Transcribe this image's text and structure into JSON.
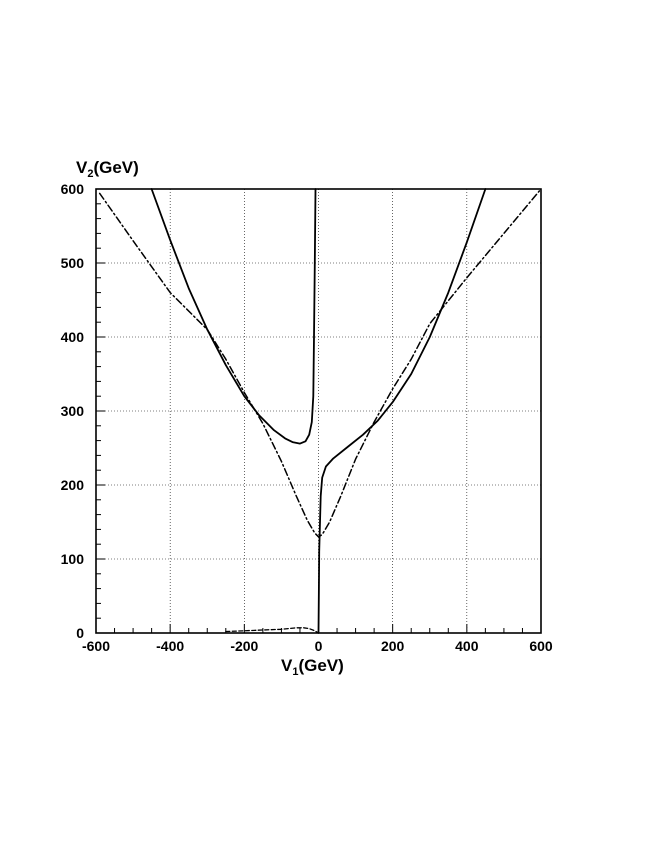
{
  "chart_data": {
    "type": "line",
    "xlabel": {
      "main": "V",
      "sub": "1",
      "unit": "(GeV)"
    },
    "ylabel": {
      "main": "V",
      "sub": "2",
      "unit": "(GeV)"
    },
    "xlim": [
      -600,
      600
    ],
    "ylim": [
      0,
      600
    ],
    "grid": true,
    "x_major_ticks": [
      -600,
      -400,
      -200,
      0,
      200,
      400,
      600
    ],
    "y_major_ticks": [
      0,
      100,
      200,
      300,
      400,
      500,
      600
    ],
    "x_tick_labels": [
      "-600",
      "-400",
      "-200",
      "0",
      "200",
      "400",
      "600"
    ],
    "y_tick_labels": [
      "0",
      "100",
      "200",
      "300",
      "400",
      "500",
      "600"
    ],
    "series": [
      {
        "style": "solid",
        "points": [
          [
            -450,
            600
          ],
          [
            -400,
            531
          ],
          [
            -350,
            466
          ],
          [
            -300,
            410
          ],
          [
            -250,
            362
          ],
          [
            -200,
            320
          ],
          [
            -160,
            294
          ],
          [
            -120,
            274
          ],
          [
            -90,
            263
          ],
          [
            -70,
            258
          ],
          [
            -50,
            256
          ],
          [
            -35,
            259
          ],
          [
            -25,
            268
          ],
          [
            -18,
            285
          ],
          [
            -14,
            320
          ],
          [
            -12,
            400
          ],
          [
            -10,
            500
          ],
          [
            -8,
            600
          ]
        ]
      },
      {
        "style": "solid",
        "points": [
          [
            0,
            0
          ],
          [
            1,
            60
          ],
          [
            2,
            110
          ],
          [
            4,
            150
          ],
          [
            6,
            185
          ],
          [
            10,
            210
          ],
          [
            20,
            225
          ],
          [
            40,
            236
          ],
          [
            80,
            252
          ],
          [
            120,
            268
          ],
          [
            160,
            287
          ],
          [
            200,
            312
          ],
          [
            250,
            350
          ],
          [
            300,
            400
          ],
          [
            350,
            460
          ],
          [
            400,
            528
          ],
          [
            450,
            600
          ]
        ]
      },
      {
        "style": "dash-dot",
        "points": [
          [
            -590,
            594
          ],
          [
            -500,
            530
          ],
          [
            -400,
            460
          ],
          [
            -300,
            410
          ],
          [
            -250,
            370
          ],
          [
            -200,
            325
          ],
          [
            -150,
            283
          ],
          [
            -100,
            232
          ],
          [
            -60,
            185
          ],
          [
            -30,
            152
          ],
          [
            -10,
            135
          ],
          [
            0,
            130
          ],
          [
            10,
            133
          ],
          [
            30,
            150
          ],
          [
            60,
            185
          ],
          [
            100,
            235
          ],
          [
            150,
            285
          ],
          [
            200,
            330
          ],
          [
            250,
            370
          ],
          [
            300,
            418
          ],
          [
            400,
            480
          ],
          [
            500,
            540
          ],
          [
            600,
            600
          ]
        ]
      },
      {
        "style": "dashed",
        "points": [
          [
            -250,
            2
          ],
          [
            -200,
            3
          ],
          [
            -150,
            4
          ],
          [
            -100,
            5
          ],
          [
            -60,
            7
          ],
          [
            -40,
            7
          ],
          [
            -25,
            6
          ],
          [
            -10,
            3
          ],
          [
            -3,
            1
          ]
        ]
      }
    ]
  }
}
